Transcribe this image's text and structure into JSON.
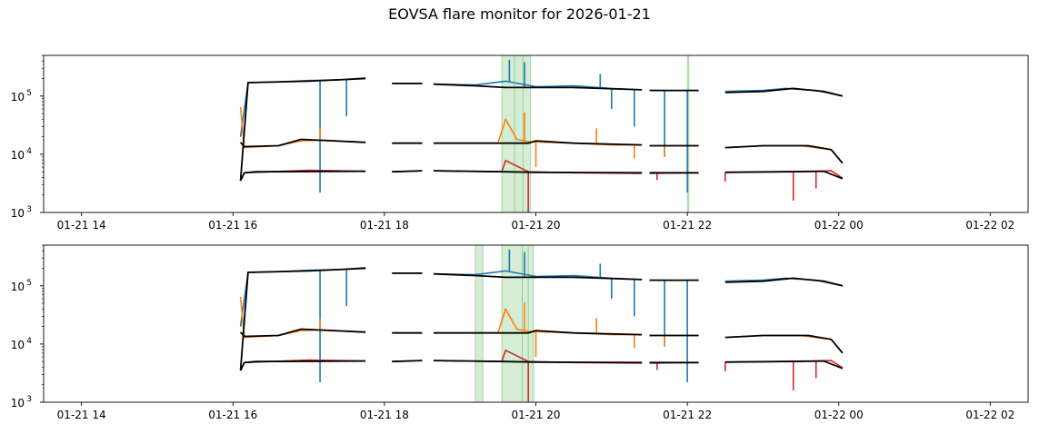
{
  "chart_data": {
    "type": "line",
    "title": "EOVSA flare monitor for 2026-01-21",
    "yscale": "log",
    "ylim": [
      1000,
      500000
    ],
    "y_ticks": [
      {
        "value": 1000,
        "label": "10",
        "exp": "3"
      },
      {
        "value": 10000,
        "label": "10",
        "exp": "4"
      },
      {
        "value": 100000,
        "label": "10",
        "exp": "5"
      }
    ],
    "xlim_hours": [
      13.5,
      26.5
    ],
    "x_ticks": [
      {
        "hour": 14,
        "label": "01-21 14"
      },
      {
        "hour": 16,
        "label": "01-21 16"
      },
      {
        "hour": 18,
        "label": "01-21 18"
      },
      {
        "hour": 20,
        "label": "01-21 20"
      },
      {
        "hour": 22,
        "label": "01-21 22"
      },
      {
        "hour": 24,
        "label": "01-22 00"
      },
      {
        "hour": 26,
        "label": "01-22 02"
      }
    ],
    "data_segments_hours": [
      [
        16.1,
        17.75
      ],
      [
        18.1,
        18.5
      ],
      [
        18.65,
        21.4
      ],
      [
        21.5,
        22.15
      ],
      [
        22.5,
        24.05
      ]
    ],
    "series": [
      {
        "name": "high",
        "color": "#1f77b4",
        "points": [
          [
            16.1,
            20000
          ],
          [
            16.2,
            170000
          ],
          [
            16.6,
            175000
          ],
          [
            17.0,
            185000
          ],
          [
            17.4,
            190000
          ],
          [
            17.75,
            205000
          ],
          [
            18.1,
            165000
          ],
          [
            18.5,
            165000
          ],
          [
            18.65,
            160000
          ],
          [
            19.2,
            155000
          ],
          [
            19.6,
            180000
          ],
          [
            20.0,
            145000
          ],
          [
            20.5,
            150000
          ],
          [
            21.0,
            135000
          ],
          [
            21.4,
            128000
          ],
          [
            21.5,
            125000
          ],
          [
            21.8,
            124000
          ],
          [
            22.15,
            125000
          ],
          [
            22.5,
            120000
          ],
          [
            23.0,
            125000
          ],
          [
            23.3,
            135000
          ],
          [
            23.7,
            125000
          ],
          [
            24.05,
            100000
          ]
        ],
        "spikes": [
          [
            17.15,
            2200
          ],
          [
            17.5,
            45000
          ],
          [
            19.65,
            420000
          ],
          [
            19.85,
            380000
          ],
          [
            20.85,
            240000
          ],
          [
            21.3,
            30000
          ],
          [
            21.7,
            9000
          ],
          [
            22.0,
            2200
          ],
          [
            21.0,
            60000
          ]
        ]
      },
      {
        "name": "mid",
        "color": "#ff7f0e",
        "points": [
          [
            16.1,
            65000
          ],
          [
            16.15,
            13000
          ],
          [
            16.6,
            14000
          ],
          [
            16.9,
            17000
          ],
          [
            17.2,
            17500
          ],
          [
            17.75,
            16000
          ],
          [
            18.1,
            15500
          ],
          [
            18.5,
            15500
          ],
          [
            18.65,
            15500
          ],
          [
            19.5,
            15500
          ],
          [
            19.6,
            40000
          ],
          [
            19.75,
            18000
          ],
          [
            19.9,
            16500
          ],
          [
            20.5,
            15500
          ],
          [
            21.0,
            14500
          ],
          [
            21.4,
            14500
          ],
          [
            21.5,
            14000
          ],
          [
            22.15,
            14000
          ],
          [
            22.5,
            13000
          ],
          [
            23.0,
            14000
          ],
          [
            23.5,
            14000
          ],
          [
            23.9,
            12000
          ],
          [
            24.05,
            7000
          ]
        ],
        "spikes": [
          [
            17.15,
            28000
          ],
          [
            19.85,
            52000
          ],
          [
            20.0,
            6000
          ],
          [
            20.8,
            28000
          ],
          [
            21.3,
            8500
          ],
          [
            21.7,
            9000
          ]
        ]
      },
      {
        "name": "low",
        "color": "#d62728",
        "points": [
          [
            16.1,
            3500
          ],
          [
            16.15,
            4800
          ],
          [
            17.0,
            5300
          ],
          [
            17.75,
            5100
          ],
          [
            18.1,
            5000
          ],
          [
            18.5,
            5200
          ],
          [
            18.65,
            5200
          ],
          [
            19.55,
            5000
          ],
          [
            19.6,
            7800
          ],
          [
            19.9,
            5000
          ],
          [
            20.5,
            4800
          ],
          [
            21.4,
            4700
          ],
          [
            21.5,
            4700
          ],
          [
            22.15,
            4800
          ],
          [
            22.5,
            4900
          ],
          [
            23.5,
            5000
          ],
          [
            23.9,
            5200
          ],
          [
            24.05,
            3900
          ]
        ],
        "spikes": [
          [
            19.9,
            1000
          ],
          [
            23.4,
            1600
          ],
          [
            23.7,
            2600
          ],
          [
            21.6,
            3600
          ],
          [
            22.5,
            3400
          ]
        ]
      },
      {
        "name": "smooth",
        "color": "#000000",
        "points": [
          [
            16.1,
            3500
          ],
          [
            16.15,
            4800
          ],
          [
            16.3,
            5000
          ],
          [
            17.75,
            5100
          ],
          [
            18.1,
            5000
          ],
          [
            18.5,
            5200
          ],
          [
            18.65,
            5200
          ],
          [
            19.6,
            5000
          ],
          [
            20.0,
            4900
          ],
          [
            21.4,
            4800
          ],
          [
            21.5,
            4800
          ],
          [
            22.15,
            4800
          ],
          [
            22.5,
            4900
          ],
          [
            23.8,
            5100
          ],
          [
            24.05,
            3800
          ]
        ],
        "extra": [
          [
            [
              16.1,
              3500
            ],
            [
              16.2,
              170000
            ],
            [
              17.0,
              180000
            ],
            [
              17.4,
              190000
            ],
            [
              17.75,
              200000
            ]
          ],
          [
            [
              16.1,
              16000
            ],
            [
              16.15,
              13500
            ],
            [
              16.6,
              14000
            ],
            [
              16.9,
              18000
            ],
            [
              17.75,
              16000
            ]
          ],
          [
            [
              18.1,
              165000
            ],
            [
              18.5,
              165000
            ]
          ],
          [
            [
              18.1,
              15500
            ],
            [
              18.5,
              15500
            ]
          ],
          [
            [
              18.65,
              160000
            ],
            [
              19.2,
              150000
            ],
            [
              19.6,
              140000
            ],
            [
              20.0,
              140000
            ],
            [
              20.5,
              140000
            ],
            [
              21.4,
              128000
            ]
          ],
          [
            [
              18.65,
              15500
            ],
            [
              19.9,
              15500
            ],
            [
              20.0,
              17000
            ],
            [
              20.5,
              15500
            ],
            [
              21.4,
              14500
            ]
          ],
          [
            [
              21.5,
              125000
            ],
            [
              22.15,
              125000
            ]
          ],
          [
            [
              21.5,
              14000
            ],
            [
              22.15,
              14000
            ]
          ],
          [
            [
              22.5,
              115000
            ],
            [
              23.0,
              120000
            ],
            [
              23.4,
              135000
            ],
            [
              23.8,
              120000
            ],
            [
              24.05,
              100000
            ]
          ],
          [
            [
              22.5,
              13000
            ],
            [
              23.0,
              14000
            ],
            [
              23.6,
              14000
            ],
            [
              23.9,
              12000
            ],
            [
              24.05,
              7000
            ]
          ]
        ]
      }
    ],
    "panels": [
      {
        "name": "top",
        "flare_bands_hours": [
          [
            19.55,
            19.93
          ],
          [
            22.0,
            22.02
          ]
        ],
        "band_dividers_hours": [
          19.72,
          19.83
        ]
      },
      {
        "name": "bottom",
        "flare_bands_hours": [
          [
            19.2,
            19.3
          ],
          [
            19.55,
            19.97
          ]
        ],
        "band_dividers_hours": [
          19.82,
          19.9
        ]
      }
    ]
  }
}
